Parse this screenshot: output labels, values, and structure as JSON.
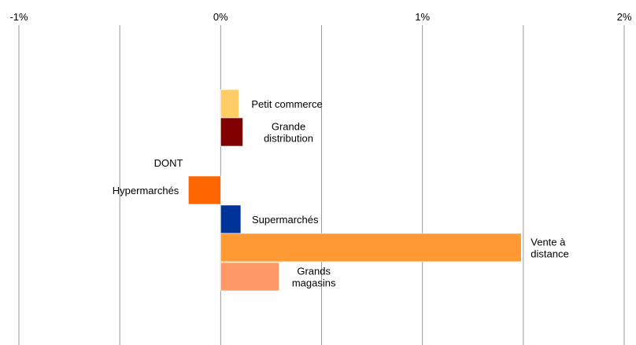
{
  "chart_data": {
    "type": "bar",
    "orientation": "horizontal",
    "title": "",
    "xlabel": "",
    "ylabel": "",
    "xlim": [
      -1,
      2
    ],
    "x_ticks": [
      -1,
      0,
      1,
      2
    ],
    "x_tick_labels": [
      "-1%",
      "0%",
      "1%",
      "2%"
    ],
    "x_axis_position": "top",
    "grid": true,
    "legend": "none",
    "bars": [
      {
        "category": "Petit commerce",
        "value": 0.09,
        "color": "#FFCC66"
      },
      {
        "category": "Grande distribution",
        "value": 0.11,
        "color": "#800000"
      },
      {
        "category": "Hypermarchés",
        "value": -0.16,
        "color": "#FF6600"
      },
      {
        "category": "Supermarchés",
        "value": 0.1,
        "color": "#003399"
      },
      {
        "category": "Vente à distance",
        "value": 1.49,
        "color": "#FF9933"
      },
      {
        "category": "Grands magasins",
        "value": 0.29,
        "color": "#FF9966"
      }
    ],
    "label_lines": [
      [
        "Petit commerce"
      ],
      [
        "Grande",
        "distribution"
      ],
      [
        "Hypermarchés"
      ],
      [
        "Supermarchés"
      ],
      [
        "Vente à",
        "distance"
      ],
      [
        "Grands",
        "magasins"
      ]
    ],
    "annotations": [
      {
        "text": "DONT",
        "near": "Hypermarchés"
      }
    ]
  }
}
